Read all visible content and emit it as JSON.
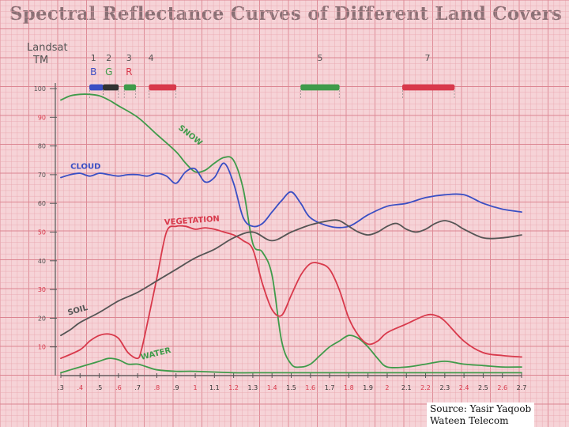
{
  "title": "Spectral Reflectance Curves of Different Land Covers",
  "source_lines": [
    "Source: Yasir Yaqoob",
    "Wateen Telecom"
  ],
  "colors": {
    "background": "#f6d3d7",
    "grid_minor": "#eaa8b0",
    "grid_major": "#dc8591",
    "snow": "#3f9b4a",
    "cloud": "#3a4fc4",
    "vegetation": "#d8394b",
    "soil": "#555555",
    "water": "#3f9b4a",
    "band_blue": "#3a4fc4",
    "band_green": "#3f9b4a",
    "band_red": "#d8394b",
    "band_dark": "#333333"
  },
  "chart_data": {
    "type": "line",
    "xlabel": "",
    "ylabel": "",
    "xlim": [
      0.3,
      2.7
    ],
    "ylim": [
      0,
      100
    ],
    "xticks": [
      {
        "v": 0.3,
        "label": ".3",
        "color": "#333333"
      },
      {
        "v": 0.4,
        "label": ".4",
        "color": "#d8394b"
      },
      {
        "v": 0.5,
        "label": ".5",
        "color": "#333333"
      },
      {
        "v": 0.6,
        "label": ".6",
        "color": "#d8394b"
      },
      {
        "v": 0.7,
        "label": ".7",
        "color": "#333333"
      },
      {
        "v": 0.8,
        "label": ".8",
        "color": "#d8394b"
      },
      {
        "v": 0.9,
        "label": ".9",
        "color": "#333333"
      },
      {
        "v": 1.0,
        "label": "1",
        "color": "#d8394b"
      },
      {
        "v": 1.1,
        "label": "1.1",
        "color": "#333333"
      },
      {
        "v": 1.2,
        "label": "1.2",
        "color": "#d8394b"
      },
      {
        "v": 1.3,
        "label": "1.3",
        "color": "#333333"
      },
      {
        "v": 1.4,
        "label": "1.4",
        "color": "#d8394b"
      },
      {
        "v": 1.5,
        "label": "1.5",
        "color": "#333333"
      },
      {
        "v": 1.6,
        "label": "1.6",
        "color": "#d8394b"
      },
      {
        "v": 1.7,
        "label": "1.7",
        "color": "#333333"
      },
      {
        "v": 1.8,
        "label": "1.8",
        "color": "#d8394b"
      },
      {
        "v": 1.9,
        "label": "1.9",
        "color": "#333333"
      },
      {
        "v": 2.0,
        "label": "2",
        "color": "#d8394b"
      },
      {
        "v": 2.1,
        "label": "2.1",
        "color": "#333333"
      },
      {
        "v": 2.2,
        "label": "2.2",
        "color": "#d8394b"
      },
      {
        "v": 2.3,
        "label": "2.3",
        "color": "#333333"
      },
      {
        "v": 2.4,
        "label": "2.4",
        "color": "#d8394b"
      },
      {
        "v": 2.5,
        "label": "2.5",
        "color": "#333333"
      },
      {
        "v": 2.6,
        "label": "2.6",
        "color": "#d8394b"
      },
      {
        "v": 2.7,
        "label": "2.7",
        "color": "#333333"
      }
    ],
    "yticks": [
      {
        "v": 10,
        "label": "10",
        "color": "#d8394b"
      },
      {
        "v": 20,
        "label": "20",
        "color": "#555555"
      },
      {
        "v": 30,
        "label": "30",
        "color": "#d8394b"
      },
      {
        "v": 40,
        "label": "40",
        "color": "#555555"
      },
      {
        "v": 50,
        "label": "50",
        "color": "#d8394b"
      },
      {
        "v": 60,
        "label": "60",
        "color": "#555555"
      },
      {
        "v": 70,
        "label": "70",
        "color": "#555555"
      },
      {
        "v": 80,
        "label": "80",
        "color": "#555555"
      },
      {
        "v": 90,
        "label": "90",
        "color": "#d8394b"
      },
      {
        "v": 100,
        "label": "100",
        "color": "#555555"
      }
    ],
    "landsat": {
      "label_lines": [
        "Landsat",
        "TM"
      ],
      "bands": [
        {
          "number": "1",
          "letter": "B",
          "letter_color": "#3a4fc4",
          "x": 0.47,
          "range": [
            0.45,
            0.52
          ],
          "color": "#3a4fc4"
        },
        {
          "number": "2",
          "letter": "G",
          "letter_color": "#3f9b4a",
          "x": 0.55,
          "range": [
            0.52,
            0.6
          ],
          "color": "#333333"
        },
        {
          "number": "3",
          "letter": "R",
          "letter_color": "#d8394b",
          "x": 0.655,
          "range": [
            0.63,
            0.69
          ],
          "color": "#3f9b4a"
        },
        {
          "number": "4",
          "letter": "",
          "letter_color": "#333333",
          "x": 0.77,
          "range": [
            0.76,
            0.9
          ],
          "color": "#d8394b"
        },
        {
          "number": "5",
          "letter": "",
          "letter_color": "#333333",
          "x": 1.65,
          "range": [
            1.55,
            1.75
          ],
          "color": "#3f9b4a"
        },
        {
          "number": "7",
          "letter": "",
          "letter_color": "#333333",
          "x": 2.21,
          "range": [
            2.08,
            2.35
          ],
          "color": "#d8394b"
        }
      ]
    },
    "series": [
      {
        "name": "Snow",
        "label": "SNOW",
        "color": "#3f9b4a",
        "label_at": {
          "x": 0.91,
          "y": 86
        },
        "label_rotate": 38,
        "points": [
          [
            0.3,
            96
          ],
          [
            0.35,
            97.5
          ],
          [
            0.4,
            98
          ],
          [
            0.45,
            98
          ],
          [
            0.5,
            97.5
          ],
          [
            0.55,
            96
          ],
          [
            0.6,
            94
          ],
          [
            0.7,
            90
          ],
          [
            0.8,
            84
          ],
          [
            0.9,
            78
          ],
          [
            0.95,
            74
          ],
          [
            1.0,
            71
          ],
          [
            1.05,
            71.5
          ],
          [
            1.1,
            74
          ],
          [
            1.15,
            76
          ],
          [
            1.2,
            75
          ],
          [
            1.25,
            65
          ],
          [
            1.3,
            46
          ],
          [
            1.35,
            43
          ],
          [
            1.4,
            35
          ],
          [
            1.45,
            12
          ],
          [
            1.5,
            4
          ],
          [
            1.55,
            3
          ],
          [
            1.6,
            4
          ],
          [
            1.65,
            7
          ],
          [
            1.7,
            10
          ],
          [
            1.75,
            12
          ],
          [
            1.8,
            14
          ],
          [
            1.85,
            13
          ],
          [
            1.9,
            10
          ],
          [
            1.95,
            6
          ],
          [
            2.0,
            3
          ],
          [
            2.1,
            3
          ],
          [
            2.2,
            4
          ],
          [
            2.3,
            5
          ],
          [
            2.4,
            4
          ],
          [
            2.5,
            3.5
          ],
          [
            2.6,
            3
          ],
          [
            2.7,
            3
          ]
        ]
      },
      {
        "name": "Cloud",
        "label": "CLOUD",
        "color": "#3a4fc4",
        "label_at": {
          "x": 0.35,
          "y": 72
        },
        "label_rotate": 0,
        "points": [
          [
            0.3,
            69
          ],
          [
            0.35,
            70
          ],
          [
            0.4,
            70.5
          ],
          [
            0.45,
            69.5
          ],
          [
            0.5,
            70.5
          ],
          [
            0.55,
            70
          ],
          [
            0.6,
            69.5
          ],
          [
            0.65,
            70
          ],
          [
            0.7,
            70
          ],
          [
            0.75,
            69.5
          ],
          [
            0.8,
            70.5
          ],
          [
            0.85,
            69.5
          ],
          [
            0.9,
            67
          ],
          [
            0.95,
            71
          ],
          [
            1.0,
            72
          ],
          [
            1.05,
            67.5
          ],
          [
            1.1,
            69
          ],
          [
            1.15,
            74
          ],
          [
            1.2,
            67
          ],
          [
            1.25,
            55
          ],
          [
            1.3,
            52
          ],
          [
            1.35,
            53
          ],
          [
            1.4,
            57
          ],
          [
            1.45,
            61
          ],
          [
            1.5,
            64
          ],
          [
            1.55,
            60
          ],
          [
            1.6,
            55
          ],
          [
            1.7,
            52
          ],
          [
            1.8,
            52
          ],
          [
            1.9,
            56
          ],
          [
            2.0,
            59
          ],
          [
            2.1,
            60
          ],
          [
            2.2,
            62
          ],
          [
            2.3,
            63
          ],
          [
            2.4,
            63
          ],
          [
            2.5,
            60
          ],
          [
            2.6,
            58
          ],
          [
            2.7,
            57
          ]
        ]
      },
      {
        "name": "Vegetation",
        "label": "VEGETATION",
        "color": "#d8394b",
        "label_at": {
          "x": 0.84,
          "y": 52.5
        },
        "label_rotate": -4,
        "points": [
          [
            0.3,
            6
          ],
          [
            0.4,
            9
          ],
          [
            0.45,
            12
          ],
          [
            0.5,
            14
          ],
          [
            0.55,
            14.5
          ],
          [
            0.6,
            13
          ],
          [
            0.65,
            8
          ],
          [
            0.7,
            6
          ],
          [
            0.72,
            9
          ],
          [
            0.75,
            18
          ],
          [
            0.8,
            34
          ],
          [
            0.85,
            50
          ],
          [
            0.9,
            52
          ],
          [
            0.95,
            52
          ],
          [
            1.0,
            51
          ],
          [
            1.05,
            51.5
          ],
          [
            1.1,
            51
          ],
          [
            1.15,
            50
          ],
          [
            1.2,
            49
          ],
          [
            1.25,
            47
          ],
          [
            1.3,
            44
          ],
          [
            1.35,
            32
          ],
          [
            1.4,
            23
          ],
          [
            1.45,
            21
          ],
          [
            1.5,
            28
          ],
          [
            1.55,
            35
          ],
          [
            1.6,
            39
          ],
          [
            1.65,
            39
          ],
          [
            1.7,
            37
          ],
          [
            1.75,
            30
          ],
          [
            1.8,
            20
          ],
          [
            1.85,
            14
          ],
          [
            1.9,
            11
          ],
          [
            1.95,
            12
          ],
          [
            2.0,
            15
          ],
          [
            2.1,
            18
          ],
          [
            2.2,
            21
          ],
          [
            2.25,
            21
          ],
          [
            2.3,
            19
          ],
          [
            2.4,
            12
          ],
          [
            2.5,
            8
          ],
          [
            2.6,
            7
          ],
          [
            2.7,
            6.5
          ]
        ]
      },
      {
        "name": "Soil",
        "label": "SOIL",
        "color": "#555555",
        "label_at": {
          "x": 0.34,
          "y": 21
        },
        "label_rotate": -16,
        "points": [
          [
            0.3,
            14
          ],
          [
            0.35,
            16
          ],
          [
            0.4,
            18.5
          ],
          [
            0.5,
            22
          ],
          [
            0.6,
            26
          ],
          [
            0.7,
            29
          ],
          [
            0.8,
            33
          ],
          [
            0.9,
            37
          ],
          [
            1.0,
            41
          ],
          [
            1.1,
            44
          ],
          [
            1.2,
            48
          ],
          [
            1.3,
            50
          ],
          [
            1.4,
            47
          ],
          [
            1.5,
            50
          ],
          [
            1.6,
            52.5
          ],
          [
            1.7,
            54
          ],
          [
            1.75,
            54
          ],
          [
            1.8,
            52
          ],
          [
            1.85,
            50
          ],
          [
            1.9,
            49
          ],
          [
            1.95,
            50
          ],
          [
            2.0,
            52
          ],
          [
            2.05,
            53
          ],
          [
            2.1,
            51
          ],
          [
            2.15,
            50
          ],
          [
            2.2,
            51
          ],
          [
            2.25,
            53
          ],
          [
            2.3,
            54
          ],
          [
            2.35,
            53
          ],
          [
            2.4,
            51
          ],
          [
            2.5,
            48
          ],
          [
            2.6,
            48
          ],
          [
            2.7,
            49
          ]
        ]
      },
      {
        "name": "Water",
        "label": "WATER",
        "color": "#3f9b4a",
        "label_at": {
          "x": 0.72,
          "y": 5.5
        },
        "label_rotate": -14,
        "points": [
          [
            0.3,
            1
          ],
          [
            0.35,
            2
          ],
          [
            0.4,
            3
          ],
          [
            0.45,
            4
          ],
          [
            0.5,
            5
          ],
          [
            0.55,
            6
          ],
          [
            0.6,
            5.5
          ],
          [
            0.65,
            4
          ],
          [
            0.7,
            4
          ],
          [
            0.75,
            3
          ],
          [
            0.8,
            2
          ],
          [
            0.9,
            1.5
          ],
          [
            1.0,
            1.5
          ],
          [
            1.2,
            1
          ],
          [
            1.3,
            1
          ],
          [
            1.5,
            1
          ],
          [
            1.7,
            1
          ],
          [
            1.9,
            1
          ],
          [
            2.1,
            1
          ],
          [
            2.3,
            1
          ],
          [
            2.5,
            1
          ],
          [
            2.7,
            1
          ]
        ]
      }
    ]
  }
}
